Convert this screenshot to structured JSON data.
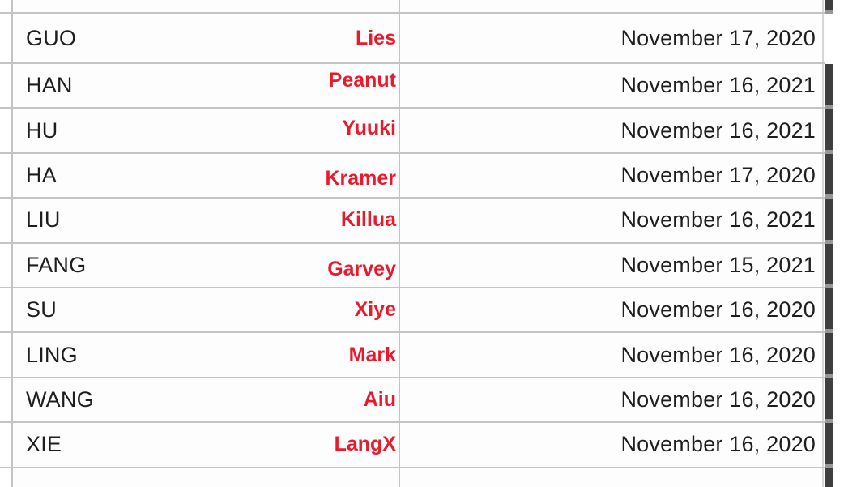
{
  "table": {
    "rows": [
      {
        "last_name": "GUO",
        "first_name": "Lies",
        "date": "November 17, 2020"
      },
      {
        "last_name": "HAN",
        "first_name": "Peanut",
        "date": "November 16, 2021"
      },
      {
        "last_name": "HU",
        "first_name": "Yuuki",
        "date": "November 16, 2021"
      },
      {
        "last_name": "HA",
        "first_name": "Kramer",
        "date": "November 17, 2020"
      },
      {
        "last_name": "LIU",
        "first_name": "Killua",
        "date": "November 16, 2021"
      },
      {
        "last_name": "FANG",
        "first_name": "Garvey",
        "date": "November 15, 2021"
      },
      {
        "last_name": "SU",
        "first_name": "Xiye",
        "date": "November 16, 2020"
      },
      {
        "last_name": "LING",
        "first_name": "Mark",
        "date": "November 16, 2020"
      },
      {
        "last_name": "WANG",
        "first_name": "Aiu",
        "date": "November 16, 2020"
      },
      {
        "last_name": "XIE",
        "first_name": "LangX",
        "date": "November 16, 2020"
      }
    ]
  },
  "colors": {
    "accent_red": "#e81b2c",
    "text": "#1e1e1e",
    "grid_line": "#c4c4c4",
    "grid_line_light": "#d6d6d6",
    "cell_background": "#fdfdfd",
    "page_background": "#ffffff",
    "scrollbar": "#3e3e3e",
    "scrollbar_notch": "#979797"
  }
}
